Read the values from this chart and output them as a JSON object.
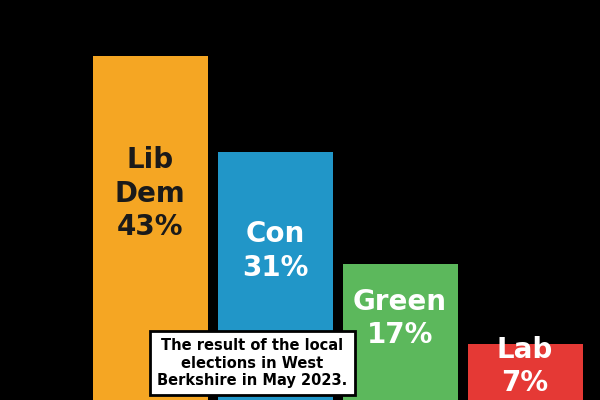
{
  "parties": [
    "Lib Dem",
    "Con",
    "Green",
    "Lab"
  ],
  "values": [
    43,
    31,
    17,
    7
  ],
  "colors": [
    "#F5A623",
    "#2196C8",
    "#5CB85C",
    "#E53935"
  ],
  "text_colors": [
    "#1a1a1a",
    "#ffffff",
    "#ffffff",
    "#ffffff"
  ],
  "labels": [
    "Lib\nDem\n43%",
    "Con\n31%",
    "Green\n17%",
    "Lab\n7%"
  ],
  "annotation": "The result of the local\nelections in West\nBerkshire in May 2023.",
  "background_color": "#000000",
  "ylim": [
    0,
    50
  ],
  "label_fontsize": 20,
  "annotation_fontsize": 10.5
}
